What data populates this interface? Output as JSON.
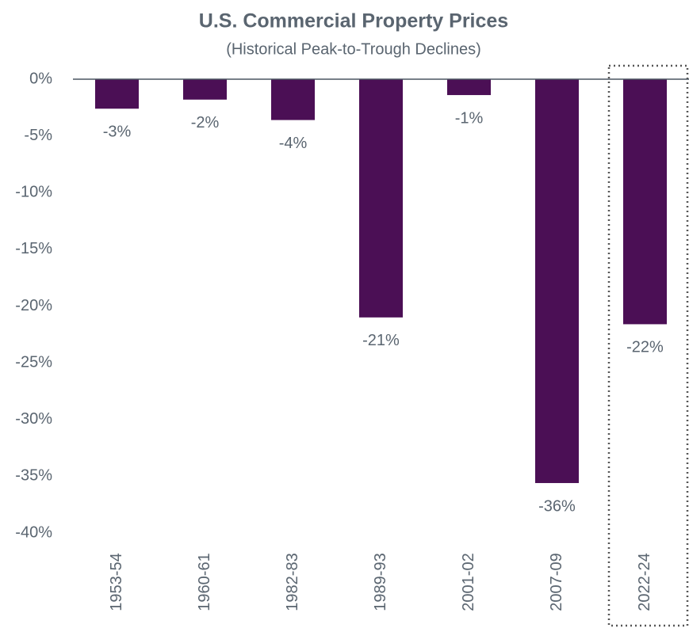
{
  "chart_data": {
    "type": "bar",
    "title": "U.S. Commercial Property Prices",
    "subtitle": "(Historical Peak-to-Trough Declines)",
    "categories": [
      "1953-54",
      "1960-61",
      "1982-83",
      "1989-93",
      "2001-02",
      "2007-09",
      "2022-24"
    ],
    "values": [
      -2.6,
      -1.8,
      -3.6,
      -21.0,
      -1.4,
      -35.6,
      -21.6
    ],
    "value_labels": [
      "-3%",
      "-2%",
      "-4%",
      "-21%",
      "-1%",
      "-36%",
      "-22%"
    ],
    "color": "#4b0f55",
    "ylim": [
      -40,
      0
    ],
    "yticks": [
      {
        "value": 0,
        "label": "0%"
      },
      {
        "value": -5,
        "label": "-5%"
      },
      {
        "value": -10,
        "label": "-10%"
      },
      {
        "value": -15,
        "label": "-15%"
      },
      {
        "value": -20,
        "label": "-20%"
      },
      {
        "value": -25,
        "label": "-25%"
      },
      {
        "value": -30,
        "label": "-30%"
      },
      {
        "value": -35,
        "label": "-35%"
      },
      {
        "value": -40,
        "label": "-40%"
      }
    ],
    "grid": false
  }
}
